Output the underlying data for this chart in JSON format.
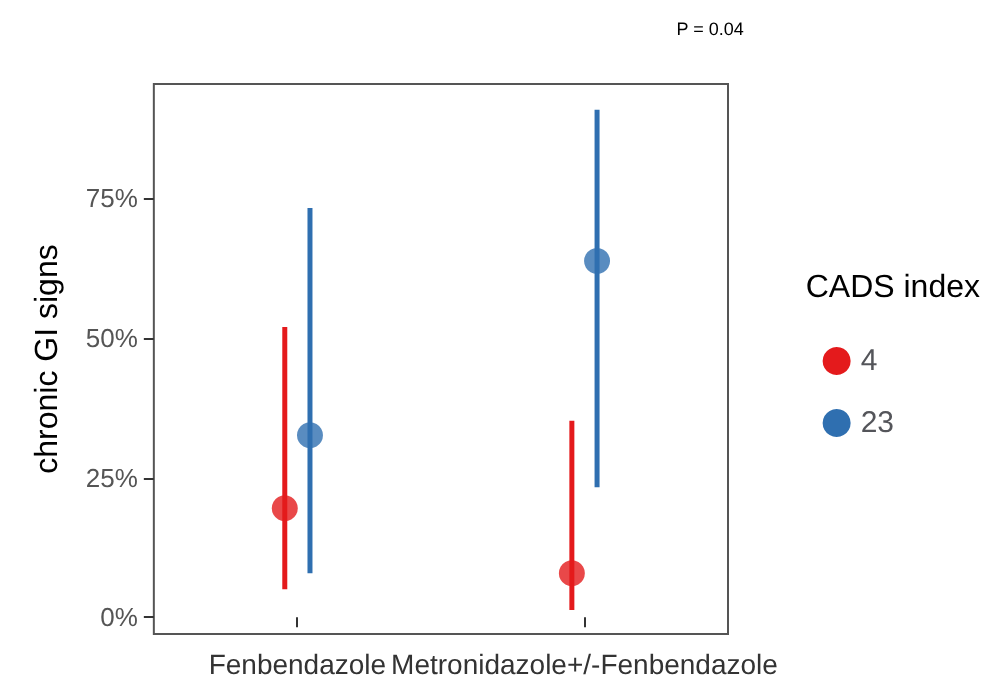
{
  "chart_data": {
    "type": "scatter",
    "ylabel": "chronic GI signs",
    "legend_title": "CADS index",
    "legend": "right",
    "grid": false,
    "marker": "circle",
    "categories": [
      "Fenbendazole",
      "Metronidazole+/-Fenbendazole"
    ],
    "ylim": [
      -3,
      95.5
    ],
    "yticks": [
      {
        "value": 0,
        "label": "0%"
      },
      {
        "value": 25,
        "label": "25%"
      },
      {
        "value": 50,
        "label": "50%"
      },
      {
        "value": 75,
        "label": "75%"
      }
    ],
    "series": [
      {
        "name": "4",
        "color": "#e41a1c",
        "values": [
          19.5,
          7.9
        ],
        "errors": [
          [
            5,
            52
          ],
          [
            1.3,
            35.2
          ]
        ]
      },
      {
        "name": "23",
        "color": "#2f6fb0",
        "values": [
          32.6,
          63.8
        ],
        "errors": [
          [
            7.9,
            73.3
          ],
          [
            23.3,
            90.9
          ]
        ]
      }
    ],
    "annotations": [
      "P = 0.04"
    ]
  }
}
